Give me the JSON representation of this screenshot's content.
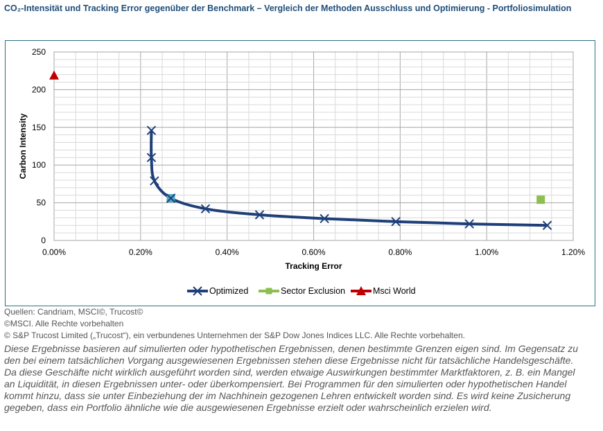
{
  "title": "CO₂-Intensität und Tracking Error gegenüber der Benchmark – Vergleich der Methoden Ausschluss und Optimierung - Portfoliosimulation",
  "sources": [
    "Quellen: Candriam, MSCI©, Trucost©",
    "©MSCI. Alle Rechte vorbehalten",
    "© S&P Trucost Limited („Trucost“), ein verbundenes Unternehmen der S&P Dow Jones Indices LLC. Alle Rechte vorbehalten."
  ],
  "disclaimer": "Diese Ergebnisse basieren auf simulierten oder hypothetischen Ergebnissen, denen bestimmte Grenzen eigen sind. Im Gegensatz zu den bei einem tatsächlichen Vorgang ausgewiesenen Ergebnissen stehen diese Ergebnisse nicht für tatsächliche Handelsgeschäfte. Da diese Geschäfte nicht wirklich ausgeführt worden sind, werden etwaige Auswirkungen bestimmter Marktfaktoren, z. B. ein Mangel an Liquidität, in diesen Ergebnissen unter- oder überkompensiert. Bei Programmen für den simulierten oder hypothetischen Handel kommt hinzu, dass sie unter Einbeziehung der im Nachhinein gezogenen Lehren entwickelt worden sind. Es wird keine Zusicherung gegeben, dass ein Portfolio ähnliche wie die ausgewiesenen Ergebnisse erzielt oder wahrscheinlich erzielen wird.",
  "chart_data": {
    "type": "scatter",
    "xlabel": "Tracking Error",
    "ylabel": "Carbon Intensity",
    "xlim": [
      0,
      0.012
    ],
    "ylim": [
      0,
      250
    ],
    "x_ticks": [
      "0.00%",
      "0.20%",
      "0.40%",
      "0.60%",
      "0.80%",
      "1.00%",
      "1.20%"
    ],
    "y_ticks": [
      "0",
      "50",
      "100",
      "150",
      "200",
      "250"
    ],
    "grid": true,
    "legend_position": "bottom",
    "series": [
      {
        "name": "Optimized",
        "color": "#1f3f7a",
        "marker": "x",
        "connected": true,
        "points": [
          {
            "x": 0.00225,
            "y": 146
          },
          {
            "x": 0.00225,
            "y": 110
          },
          {
            "x": 0.00232,
            "y": 79
          },
          {
            "x": 0.0027,
            "y": 56
          },
          {
            "x": 0.0035,
            "y": 42
          },
          {
            "x": 0.00475,
            "y": 34
          },
          {
            "x": 0.00625,
            "y": 29
          },
          {
            "x": 0.0079,
            "y": 25
          },
          {
            "x": 0.0096,
            "y": 22
          },
          {
            "x": 0.0114,
            "y": 20
          }
        ]
      },
      {
        "name": "Sector Exclusion",
        "color": "#8cbf4f",
        "marker": "square",
        "connected": false,
        "points": [
          {
            "x": 0.01125,
            "y": 54
          }
        ]
      },
      {
        "name": "Msci World",
        "color": "#c00000",
        "marker": "triangle",
        "connected": false,
        "points": [
          {
            "x": 0.0,
            "y": 219
          }
        ]
      }
    ],
    "highlight_point": {
      "x": 0.0027,
      "y": 56,
      "color": "#4bacc6"
    }
  }
}
